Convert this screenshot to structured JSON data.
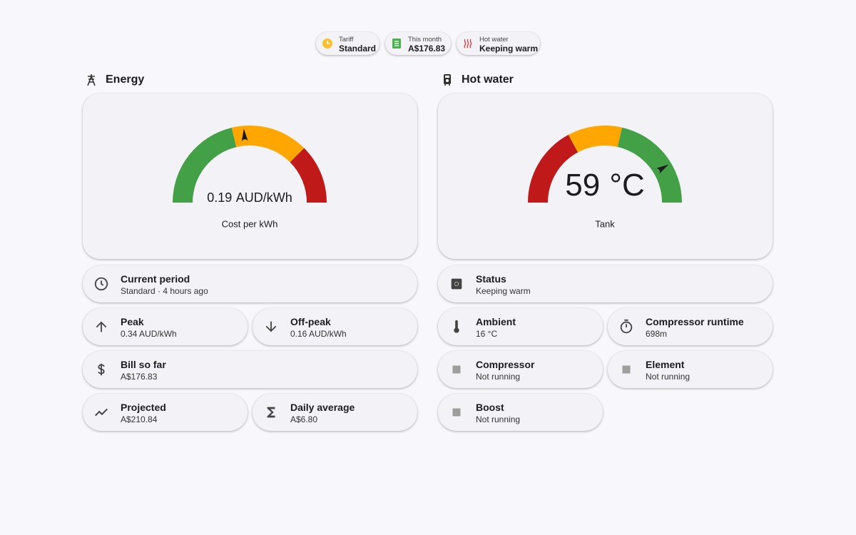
{
  "chips": [
    {
      "label": "Tariff",
      "value": "Standard"
    },
    {
      "label": "This month",
      "value": "A$176.83"
    },
    {
      "label": "Hot water",
      "value": "Keeping warm"
    }
  ],
  "energy": {
    "title": "Energy",
    "gauge": {
      "value": 0.19,
      "unit": "AUD/kWh",
      "name": "Cost per kWh",
      "min": 0,
      "max": 0.4,
      "segments": [
        {
          "from": 0,
          "color": "#43a047"
        },
        {
          "from": 0.17,
          "color": "#ffa600"
        },
        {
          "from": 0.3,
          "color": "#c0191a"
        }
      ]
    },
    "tiles": [
      {
        "name": "Current period",
        "state": "Standard · 4 hours ago"
      },
      {
        "name": "Peak",
        "state": "0.34 AUD/kWh"
      },
      {
        "name": "Off-peak",
        "state": "0.16 AUD/kWh"
      },
      {
        "name": "Bill so far",
        "state": "A$176.83"
      },
      {
        "name": "Projected",
        "state": "A$210.84"
      },
      {
        "name": "Daily average",
        "state": "A$6.80"
      }
    ]
  },
  "hot_water": {
    "title": "Hot water",
    "gauge": {
      "value": 59,
      "unit": "°C",
      "name": "Tank",
      "min": 30,
      "max": 65,
      "segments": [
        {
          "from": 30,
          "color": "#c0191a"
        },
        {
          "from": 42,
          "color": "#ffa600"
        },
        {
          "from": 50,
          "color": "#43a047"
        }
      ]
    },
    "tiles": [
      {
        "name": "Status",
        "state": "Keeping warm"
      },
      {
        "name": "Ambient",
        "state": "16 °C"
      },
      {
        "name": "Compressor runtime",
        "state": "698m"
      },
      {
        "name": "Compressor",
        "state": "Not running"
      },
      {
        "name": "Element",
        "state": "Not running"
      },
      {
        "name": "Boost",
        "state": "Not running"
      }
    ]
  }
}
